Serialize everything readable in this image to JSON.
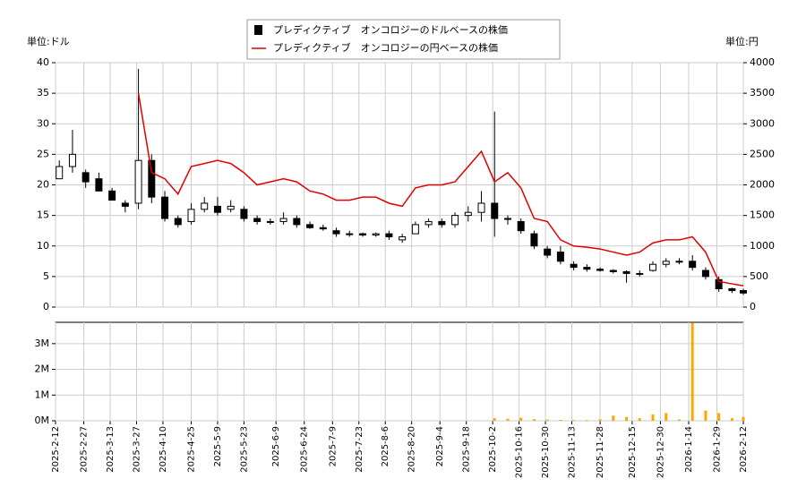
{
  "chart_data": {
    "type": "candlestick",
    "ylabel": "単位:ドル",
    "y2label": "単位:円",
    "legend": "upper center",
    "grid": true,
    "xlim": [
      "2025-2-12",
      "2026-2-12"
    ],
    "xticks": [
      "2025-2-12",
      "2025-2-27",
      "2025-3-13",
      "2025-3-27",
      "2025-4-10",
      "2025-4-25",
      "2025-5-9",
      "2025-5-23",
      "2025-6-9",
      "2025-6-24",
      "2025-7-9",
      "2025-7-23",
      "2025-8-6",
      "2025-8-20",
      "2025-9-4",
      "2025-9-18",
      "2025-10-2",
      "2025-10-16",
      "2025-10-30",
      "2025-11-13",
      "2025-11-28",
      "2025-12-15",
      "2025-12-30",
      "2026-1-14",
      "2026-1-29",
      "2026-2-12"
    ],
    "ylim": [
      0,
      40
    ],
    "yticks": [
      0,
      5,
      10,
      15,
      20,
      25,
      30,
      35,
      40
    ],
    "y2lim": [
      0,
      4000
    ],
    "y2ticks": [
      0,
      500,
      1000,
      1500,
      2000,
      2500,
      3000,
      3500,
      4000
    ],
    "x": [
      "2025-2-14",
      "2025-2-21",
      "2025-2-28",
      "2025-3-7",
      "2025-3-14",
      "2025-3-21",
      "2025-3-28",
      "2025-4-4",
      "2025-4-11",
      "2025-4-18",
      "2025-4-25",
      "2025-5-2",
      "2025-5-9",
      "2025-5-16",
      "2025-5-23",
      "2025-5-30",
      "2025-6-6",
      "2025-6-13",
      "2025-6-20",
      "2025-6-27",
      "2025-7-4",
      "2025-7-11",
      "2025-7-18",
      "2025-7-25",
      "2025-8-1",
      "2025-8-8",
      "2025-8-15",
      "2025-8-22",
      "2025-8-29",
      "2025-9-5",
      "2025-9-12",
      "2025-9-19",
      "2025-9-26",
      "2025-10-3",
      "2025-10-10",
      "2025-10-17",
      "2025-10-24",
      "2025-10-31",
      "2025-11-7",
      "2025-11-14",
      "2025-11-21",
      "2025-11-28",
      "2025-12-5",
      "2025-12-12",
      "2025-12-19",
      "2025-12-26",
      "2026-1-2",
      "2026-1-9",
      "2026-1-16",
      "2026-1-23",
      "2026-1-30",
      "2026-2-6",
      "2026-2-12"
    ],
    "series": [
      {
        "name": "プレディクティブ　オンコロジーのドルベースの株価",
        "color": "#000000",
        "open": [
          21,
          23,
          22,
          21,
          19,
          17,
          17,
          24,
          18,
          14.5,
          14,
          16,
          16.5,
          16,
          16,
          14.5,
          14,
          14,
          14.5,
          13.5,
          13,
          12.5,
          12,
          12,
          11.8,
          12,
          11,
          12,
          13.5,
          14,
          13.5,
          15,
          15.5,
          17,
          14.5,
          14,
          12,
          9.5,
          9,
          7,
          6.5,
          6.2,
          6,
          5.8,
          5.5,
          6,
          7,
          7.5,
          7.5,
          6,
          4.5,
          3,
          2.7
        ],
        "high": [
          24,
          29,
          22.5,
          22,
          19.5,
          17.5,
          39,
          25,
          19,
          15,
          17,
          18,
          18,
          17.5,
          16.5,
          15,
          14.5,
          15.5,
          15,
          14,
          13.5,
          13,
          12.5,
          12.2,
          12.2,
          12.5,
          12,
          14,
          14.5,
          14.5,
          15.5,
          16.5,
          19,
          32,
          15,
          14.5,
          12.5,
          10,
          10,
          7.5,
          7,
          6.5,
          6.2,
          6,
          6,
          7.5,
          8,
          8,
          8.5,
          6.5,
          5,
          3.2,
          3
        ],
        "low": [
          21,
          22,
          19.5,
          19,
          17.5,
          15.5,
          16,
          17,
          14,
          13,
          13.5,
          15.5,
          15,
          15.5,
          14,
          13.5,
          13.5,
          13.5,
          13,
          12.8,
          12.5,
          11.5,
          11.5,
          11.5,
          11.5,
          11,
          10.5,
          12,
          13,
          13,
          13,
          14,
          14,
          11.5,
          13.5,
          12,
          9.5,
          8,
          7,
          6,
          5.8,
          5.8,
          5.5,
          4,
          5,
          5.8,
          6.5,
          7,
          6,
          4.5,
          2.5,
          2.3,
          2
        ],
        "close": [
          23,
          25,
          20.5,
          19,
          17.5,
          16.5,
          24,
          18,
          14.5,
          13.5,
          16,
          17,
          15.5,
          16.5,
          14.5,
          14,
          14,
          14.5,
          13.5,
          13,
          12.8,
          12,
          12,
          11.8,
          12,
          11.5,
          11.5,
          13.5,
          14,
          13.5,
          15,
          15.5,
          17,
          14.5,
          14.5,
          12.5,
          10,
          8.5,
          7.5,
          6.5,
          6.2,
          6,
          5.8,
          5.5,
          5.5,
          7,
          7.5,
          7.5,
          6.5,
          5,
          3,
          2.7,
          2.3
        ]
      },
      {
        "name": "プレディクティブ　オンコロジーの円ベースの株価",
        "color": "#e00000",
        "axis": "y2",
        "values": [
          null,
          null,
          null,
          null,
          null,
          null,
          3500,
          2200,
          2100,
          1850,
          2300,
          2350,
          2400,
          2350,
          2200,
          2000,
          2050,
          2100,
          2050,
          1900,
          1850,
          1750,
          1750,
          1800,
          1800,
          1700,
          1650,
          1950,
          2000,
          2000,
          2050,
          2300,
          2550,
          2050,
          2200,
          1950,
          1450,
          1400,
          1100,
          1000,
          980,
          950,
          900,
          850,
          900,
          1050,
          1100,
          1100,
          1150,
          900,
          420,
          380,
          350
        ]
      }
    ],
    "volume": {
      "color": "#ffa500",
      "ylim": [
        0,
        3830000
      ],
      "yticks": [
        {
          "value": 0,
          "label": "0M"
        },
        {
          "value": 1000000,
          "label": "1M"
        },
        {
          "value": 2000000,
          "label": "2M"
        },
        {
          "value": 3000000,
          "label": "3M"
        }
      ],
      "values": [
        0,
        0,
        0,
        0,
        0,
        0,
        0,
        0,
        0,
        0,
        0,
        0,
        0,
        0,
        0,
        0,
        0,
        0,
        0,
        0,
        0,
        0,
        0,
        0,
        0,
        0,
        0,
        0,
        0,
        0,
        0,
        0,
        0,
        100000,
        80000,
        120000,
        60000,
        50000,
        40000,
        30000,
        30000,
        60000,
        200000,
        150000,
        100000,
        250000,
        300000,
        50000,
        3800000,
        400000,
        300000,
        100000,
        150000
      ]
    }
  }
}
